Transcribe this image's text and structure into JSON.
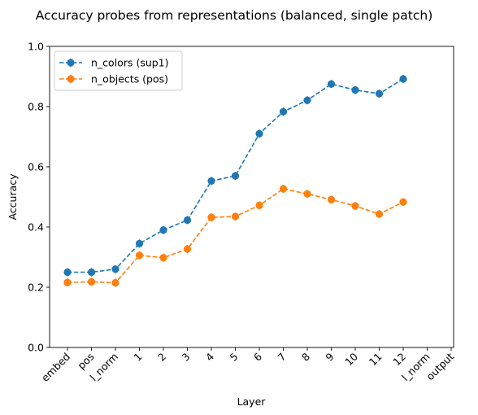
{
  "chart_data": {
    "type": "line",
    "title": "Accuracy probes from representations (balanced, single patch)",
    "xlabel": "Layer",
    "ylabel": "Accuracy",
    "ylim": [
      0.0,
      1.0
    ],
    "yticks": [
      "0.0",
      "0.2",
      "0.4",
      "0.6",
      "0.8",
      "1.0"
    ],
    "categories": [
      "embed",
      "pos",
      "l_norm",
      "1",
      "2",
      "3",
      "4",
      "5",
      "6",
      "7",
      "8",
      "9",
      "10",
      "11",
      "12",
      "l_norm",
      "output"
    ],
    "grid": false,
    "legend_position": "top-left",
    "series": [
      {
        "name": "n_colors (sup1)",
        "color": "#1f77b4",
        "linestyle": "dashed",
        "marker": "circle",
        "values": [
          0.25,
          0.25,
          0.26,
          0.345,
          0.39,
          0.423,
          0.553,
          0.57,
          0.71,
          0.783,
          0.821,
          0.875,
          0.855,
          0.843,
          0.892,
          null,
          null
        ]
      },
      {
        "name": "n_objects (pos)",
        "color": "#ff7f0e",
        "linestyle": "dashed",
        "marker": "circle",
        "values": [
          0.216,
          0.218,
          0.215,
          0.306,
          0.298,
          0.327,
          0.432,
          0.435,
          0.472,
          0.527,
          0.51,
          0.491,
          0.47,
          0.443,
          0.483,
          null,
          null
        ]
      }
    ]
  }
}
